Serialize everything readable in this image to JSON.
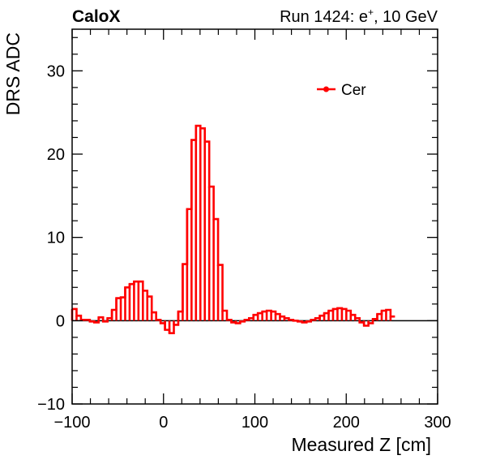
{
  "header": {
    "left_label": "CaloX",
    "run_prefix": "Run 1424: e",
    "run_sup": "+",
    "run_suffix": ", 10 GeV"
  },
  "chart_data": {
    "type": "line",
    "style": "step",
    "xlabel": "Measured Z [cm]",
    "ylabel": "DRS ADC",
    "xlim": [
      -100,
      300
    ],
    "ylim": [
      -10,
      35
    ],
    "x_ticks": [
      -100,
      0,
      100,
      200,
      300
    ],
    "x_tick_labels": [
      "−100",
      "0",
      "100",
      "200",
      "300"
    ],
    "y_ticks": [
      -10,
      0,
      10,
      20,
      30
    ],
    "y_tick_labels": [
      "−10",
      "0",
      "10",
      "20",
      "30"
    ],
    "grid": false,
    "legend_position": "top-right",
    "color": "#ff0000",
    "zero_line": true,
    "series": [
      {
        "name": "Cer",
        "bin_width": 4.84,
        "x_start": -100,
        "values": [
          1.4,
          0.6,
          0.1,
          0.1,
          -0.1,
          -0.2,
          0.4,
          -0.1,
          0.3,
          1.3,
          2.7,
          2.8,
          4.0,
          4.4,
          4.7,
          4.7,
          3.6,
          2.9,
          1.0,
          0.1,
          -0.3,
          -1.1,
          -1.5,
          -0.5,
          1.1,
          6.8,
          13.4,
          21.7,
          23.4,
          23.1,
          21.5,
          16.1,
          12.2,
          6.7,
          1.2,
          0.1,
          -0.2,
          -0.3,
          -0.1,
          0.1,
          0.3,
          0.7,
          0.9,
          1.1,
          1.2,
          1.1,
          0.8,
          0.5,
          0.3,
          0.1,
          0.0,
          -0.1,
          -0.2,
          -0.1,
          0.1,
          0.3,
          0.6,
          0.9,
          1.2,
          1.4,
          1.5,
          1.4,
          1.2,
          0.7,
          0.3,
          -0.2,
          -0.6,
          -0.3,
          0.2,
          0.8,
          1.2,
          1.3,
          0.5
        ]
      }
    ]
  }
}
